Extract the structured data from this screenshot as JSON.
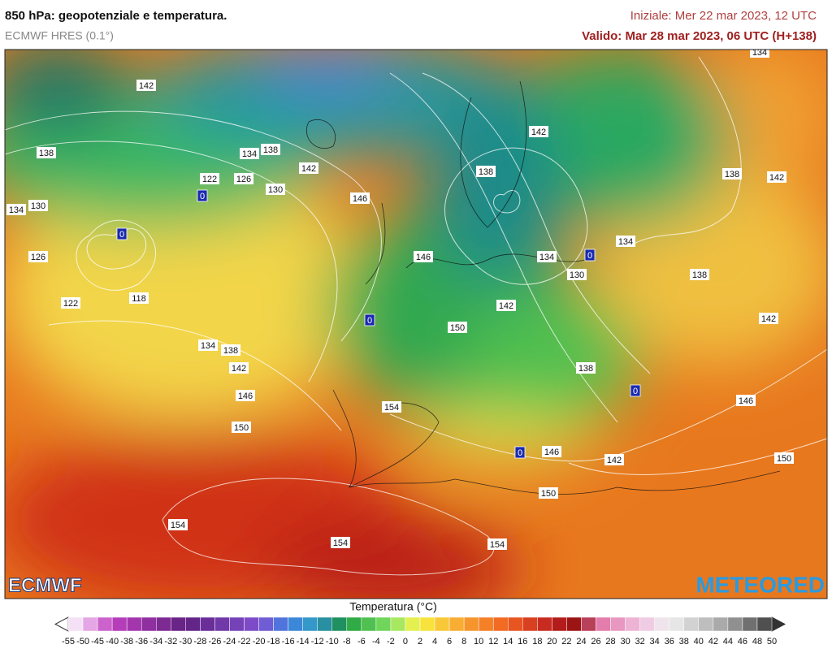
{
  "header": {
    "title": "850 hPa: geopotenziale e temperatura.",
    "model": "ECMWF HRES (0.1°)",
    "initial": "Iniziale: Mer 22 mar 2023, 12 UTC",
    "valid": "Valido: Mar 28 mar 2023, 06 UTC (H+138)"
  },
  "map": {
    "contour_labels": [
      142,
      138,
      134,
      138,
      142,
      122,
      126,
      130,
      0,
      134,
      130,
      0,
      126,
      146,
      122,
      118,
      0,
      146,
      142,
      138,
      134,
      0,
      130,
      134,
      138,
      138,
      142,
      134,
      142,
      150,
      134,
      138,
      142,
      146,
      150,
      154,
      138,
      0,
      146,
      142,
      0,
      146,
      142,
      150,
      150,
      154,
      154,
      154
    ],
    "logo_left": "ECMWF",
    "logo_right": "METEORED"
  },
  "colorbar": {
    "label": "Temperatura (°C)",
    "ticks": [
      -55,
      -50,
      -45,
      -40,
      -38,
      -36,
      -34,
      -32,
      -30,
      -28,
      -26,
      -24,
      -22,
      -20,
      -18,
      -16,
      -14,
      -12,
      -10,
      -8,
      -6,
      -4,
      -2,
      0,
      2,
      4,
      6,
      8,
      10,
      12,
      14,
      16,
      18,
      20,
      22,
      24,
      26,
      28,
      30,
      32,
      34,
      36,
      38,
      40,
      42,
      44,
      46,
      48,
      50
    ]
  }
}
